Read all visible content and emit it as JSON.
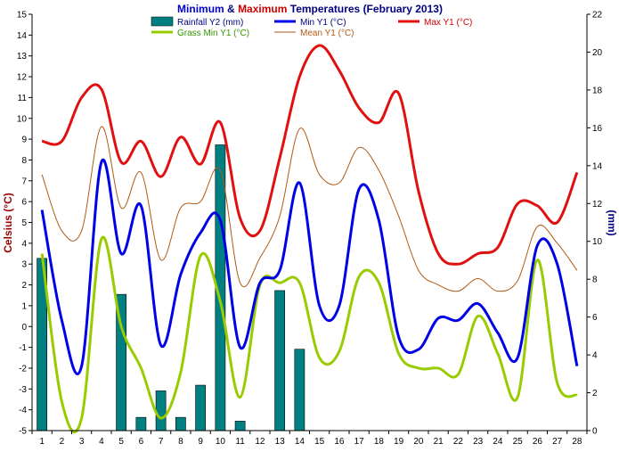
{
  "chart_data": {
    "type": "line",
    "title": {
      "part1": "Minimum",
      "part2": " & ",
      "part3": "Maximum",
      "part4": " Temperatures (February 2013)"
    },
    "ylabel": "Celsius (°C)",
    "y2label": "(mm)",
    "ylim": [
      -5,
      15
    ],
    "y2lim": [
      0,
      22
    ],
    "y_ticks": [
      "-5",
      "-4",
      "-3",
      "-2",
      "-1",
      "0",
      "1",
      "2",
      "3",
      "4",
      "5",
      "6",
      "7",
      "8",
      "9",
      "10",
      "11",
      "12",
      "13",
      "14",
      "15"
    ],
    "y2_ticks": [
      "0",
      "2",
      "4",
      "6",
      "8",
      "10",
      "12",
      "14",
      "16",
      "18",
      "20",
      "22"
    ],
    "x": [
      "1",
      "2",
      "3",
      "4",
      "5",
      "6",
      "7",
      "8",
      "9",
      "10",
      "11",
      "12",
      "13",
      "14",
      "15",
      "16",
      "17",
      "18",
      "19",
      "20",
      "21",
      "22",
      "23",
      "24",
      "25",
      "26",
      "27",
      "28"
    ],
    "grid": false,
    "legend_position": "top",
    "series": [
      {
        "name": "Rainfall Y2 (mm)",
        "axis": "y2",
        "kind": "bar",
        "color": "#008080",
        "values": [
          9.1,
          0,
          0,
          0,
          7.2,
          0.7,
          2.1,
          0.7,
          2.4,
          15.1,
          0.5,
          0,
          7.4,
          4.3,
          0,
          0,
          0,
          0,
          0,
          0,
          0,
          0,
          0,
          0,
          0,
          0,
          0,
          0
        ]
      },
      {
        "name": "Max Y1 (°C)",
        "axis": "y1",
        "kind": "line",
        "color": "#e01010",
        "values": [
          8.9,
          8.9,
          11.0,
          11.4,
          7.9,
          8.9,
          7.2,
          9.1,
          7.8,
          9.8,
          5.2,
          4.6,
          8.1,
          12.0,
          13.5,
          12.3,
          10.5,
          9.8,
          11.2,
          6.5,
          3.5,
          3.0,
          3.5,
          3.8,
          5.9,
          5.8,
          5.0,
          7.4
        ]
      },
      {
        "name": "Min Y1 (°C)",
        "axis": "y1",
        "kind": "line",
        "color": "#0000e6",
        "values": [
          5.6,
          0.3,
          -1.9,
          7.9,
          3.5,
          5.8,
          -0.9,
          2.5,
          4.5,
          5.1,
          -1.0,
          2.1,
          2.7,
          6.9,
          1.0,
          1.0,
          6.6,
          5.1,
          -0.5,
          -1.1,
          0.4,
          0.3,
          1.1,
          -0.3,
          -1.5,
          3.9,
          3.0,
          -1.9
        ]
      },
      {
        "name": "Grass Min Y1 (°C)",
        "axis": "y1",
        "kind": "line",
        "color": "#99cc00",
        "values": [
          3.5,
          -3.6,
          -4.4,
          4.2,
          0.0,
          -2.0,
          -4.4,
          -2.2,
          3.4,
          1.2,
          -3.4,
          2.0,
          2.1,
          2.1,
          -1.5,
          -1.2,
          2.4,
          2.1,
          -1.3,
          -2.0,
          -2.0,
          -2.3,
          0.5,
          -1.3,
          -3.4,
          3.2,
          -2.7,
          -3.3
        ]
      },
      {
        "name": "Mean Y1 (°C)",
        "axis": "y1",
        "kind": "line",
        "color": "#b05a14",
        "values": [
          7.3,
          4.6,
          4.6,
          9.6,
          5.7,
          7.4,
          3.2,
          5.7,
          6.0,
          7.5,
          2.1,
          3.3,
          5.3,
          9.5,
          7.3,
          6.9,
          8.6,
          7.5,
          5.3,
          2.7,
          2.0,
          1.7,
          2.3,
          1.7,
          2.2,
          4.8,
          4.0,
          2.7
        ]
      }
    ]
  }
}
